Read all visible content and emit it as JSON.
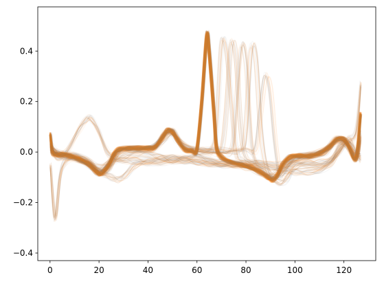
{
  "chart_data": {
    "type": "line",
    "title": "",
    "xlabel": "",
    "ylabel": "",
    "xlim": [
      -5,
      133
    ],
    "ylim": [
      -0.43,
      0.575
    ],
    "x_ticks": [
      0,
      20,
      40,
      60,
      80,
      100,
      120
    ],
    "y_ticks": [
      -0.4,
      -0.2,
      0.0,
      0.2,
      0.4
    ],
    "x_tick_labels": [
      "0",
      "20",
      "40",
      "60",
      "80",
      "100",
      "120"
    ],
    "y_tick_labels": [
      "−0.4",
      "−0.2",
      "0.0",
      "0.2",
      "0.4"
    ],
    "grid": false,
    "legend": "none",
    "colors": {
      "orange": "#ff7f0e",
      "gray": "#808080",
      "blend": "#c2792f"
    },
    "series": [
      {
        "style": "orange-dense-band",
        "points": [
          [
            0,
            0.07
          ],
          [
            1,
            0.0
          ],
          [
            3,
            -0.01
          ],
          [
            5,
            -0.01
          ],
          [
            8,
            -0.015
          ],
          [
            12,
            -0.03
          ],
          [
            16,
            -0.05
          ],
          [
            19,
            -0.08
          ],
          [
            21,
            -0.085
          ],
          [
            24,
            -0.05
          ],
          [
            26,
            -0.01
          ],
          [
            28,
            0.01
          ],
          [
            32,
            0.015
          ],
          [
            36,
            0.015
          ],
          [
            40,
            0.015
          ],
          [
            43,
            0.02
          ],
          [
            46,
            0.06
          ],
          [
            48,
            0.085
          ],
          [
            50,
            0.08
          ],
          [
            52,
            0.05
          ],
          [
            55,
            0.01
          ],
          [
            58,
            0.005
          ],
          [
            60,
            0.01
          ],
          [
            62,
            0.2
          ],
          [
            64,
            0.46
          ],
          [
            65,
            0.4
          ],
          [
            67,
            0.15
          ],
          [
            68,
            0.02
          ],
          [
            70,
            -0.02
          ],
          [
            74,
            -0.04
          ],
          [
            78,
            -0.05
          ],
          [
            82,
            -0.06
          ],
          [
            86,
            -0.08
          ],
          [
            89,
            -0.1
          ],
          [
            91,
            -0.11
          ],
          [
            93,
            -0.09
          ],
          [
            95,
            -0.05
          ],
          [
            98,
            -0.02
          ],
          [
            102,
            -0.015
          ],
          [
            106,
            -0.015
          ],
          [
            110,
            -0.005
          ],
          [
            114,
            0.02
          ],
          [
            117,
            0.05
          ],
          [
            120,
            0.05
          ],
          [
            122,
            0.02
          ],
          [
            125,
            -0.025
          ],
          [
            127,
            0.15
          ]
        ]
      },
      {
        "style": "gray-bump",
        "points": [
          [
            0,
            0.02
          ],
          [
            2,
            0.0
          ],
          [
            5,
            -0.01
          ],
          [
            8,
            0.02
          ],
          [
            12,
            0.09
          ],
          [
            15,
            0.13
          ],
          [
            17,
            0.13
          ],
          [
            20,
            0.08
          ],
          [
            23,
            0.01
          ],
          [
            26,
            -0.02
          ],
          [
            30,
            -0.03
          ],
          [
            35,
            -0.035
          ],
          [
            40,
            -0.035
          ],
          [
            45,
            -0.03
          ],
          [
            50,
            -0.025
          ],
          [
            55,
            -0.025
          ],
          [
            60,
            -0.02
          ],
          [
            65,
            -0.03
          ],
          [
            70,
            -0.04
          ],
          [
            75,
            -0.045
          ],
          [
            80,
            -0.045
          ],
          [
            85,
            -0.045
          ],
          [
            90,
            -0.05
          ],
          [
            95,
            -0.05
          ],
          [
            100,
            -0.045
          ],
          [
            105,
            -0.04
          ],
          [
            110,
            -0.04
          ],
          [
            115,
            -0.03
          ],
          [
            118,
            0.02
          ],
          [
            121,
            0.04
          ],
          [
            124,
            0.0
          ],
          [
            127,
            -0.02
          ]
        ]
      },
      {
        "style": "gray-dip",
        "points": [
          [
            0,
            0.01
          ],
          [
            3,
            -0.02
          ],
          [
            7,
            -0.02
          ],
          [
            12,
            -0.03
          ],
          [
            17,
            -0.06
          ],
          [
            21,
            -0.08
          ],
          [
            25,
            -0.1
          ],
          [
            28,
            -0.11
          ],
          [
            31,
            -0.09
          ],
          [
            35,
            -0.05
          ],
          [
            40,
            -0.04
          ],
          [
            45,
            -0.04
          ],
          [
            50,
            -0.035
          ],
          [
            55,
            -0.03
          ],
          [
            60,
            -0.03
          ],
          [
            65,
            -0.04
          ],
          [
            70,
            -0.045
          ],
          [
            75,
            -0.05
          ],
          [
            80,
            -0.06
          ],
          [
            85,
            -0.08
          ],
          [
            90,
            -0.1
          ],
          [
            94,
            -0.12
          ],
          [
            97,
            -0.1
          ],
          [
            100,
            -0.06
          ],
          [
            105,
            -0.05
          ],
          [
            110,
            -0.06
          ],
          [
            114,
            -0.04
          ],
          [
            118,
            0.0
          ],
          [
            122,
            0.05
          ],
          [
            125,
            0.0
          ],
          [
            127,
            -0.03
          ]
        ]
      },
      {
        "style": "gray-cross",
        "points": [
          [
            0,
            -0.05
          ],
          [
            2,
            -0.26
          ],
          [
            4,
            -0.1
          ],
          [
            6,
            -0.04
          ],
          [
            10,
            -0.02
          ],
          [
            15,
            -0.03
          ],
          [
            20,
            -0.06
          ],
          [
            25,
            -0.04
          ],
          [
            30,
            -0.02
          ],
          [
            35,
            -0.01
          ],
          [
            40,
            -0.01
          ],
          [
            45,
            -0.02
          ],
          [
            50,
            -0.03
          ],
          [
            55,
            -0.035
          ],
          [
            60,
            -0.04
          ],
          [
            65,
            -0.045
          ],
          [
            70,
            -0.05
          ],
          [
            75,
            -0.05
          ],
          [
            80,
            -0.05
          ],
          [
            85,
            -0.055
          ],
          [
            90,
            -0.06
          ],
          [
            95,
            -0.07
          ],
          [
            100,
            -0.08
          ],
          [
            105,
            -0.08
          ],
          [
            110,
            -0.07
          ],
          [
            115,
            -0.04
          ],
          [
            119,
            0.02
          ],
          [
            122,
            0.05
          ],
          [
            125,
            0.08
          ],
          [
            127,
            0.27
          ]
        ]
      },
      {
        "style": "late-peak",
        "points": [
          [
            0,
            0.02
          ],
          [
            3,
            -0.01
          ],
          [
            8,
            -0.015
          ],
          [
            14,
            -0.03
          ],
          [
            19,
            -0.07
          ],
          [
            22,
            -0.08
          ],
          [
            26,
            -0.03
          ],
          [
            30,
            0.005
          ],
          [
            36,
            0.012
          ],
          [
            42,
            0.015
          ],
          [
            46,
            0.05
          ],
          [
            49,
            0.08
          ],
          [
            52,
            0.05
          ],
          [
            56,
            0.01
          ],
          [
            60,
            0.005
          ],
          [
            63,
            0.005
          ],
          [
            66,
            0.01
          ],
          [
            68,
            0.1
          ],
          [
            70,
            0.42
          ],
          [
            72,
            0.4
          ],
          [
            74,
            0.2
          ],
          [
            76,
            0.0
          ],
          [
            78,
            -0.03
          ],
          [
            82,
            -0.05
          ],
          [
            86,
            -0.07
          ],
          [
            90,
            -0.1
          ],
          [
            93,
            -0.08
          ],
          [
            97,
            -0.04
          ],
          [
            102,
            -0.02
          ],
          [
            108,
            -0.01
          ],
          [
            114,
            0.02
          ],
          [
            118,
            0.05
          ],
          [
            122,
            0.03
          ],
          [
            125,
            -0.02
          ],
          [
            127,
            0.08
          ]
        ]
      },
      {
        "style": "late-peak",
        "points": [
          [
            0,
            0.01
          ],
          [
            4,
            -0.01
          ],
          [
            10,
            -0.02
          ],
          [
            16,
            -0.04
          ],
          [
            20,
            -0.075
          ],
          [
            24,
            -0.06
          ],
          [
            28,
            0.0
          ],
          [
            34,
            0.012
          ],
          [
            42,
            0.014
          ],
          [
            47,
            0.07
          ],
          [
            50,
            0.08
          ],
          [
            54,
            0.03
          ],
          [
            60,
            0.005
          ],
          [
            66,
            0.005
          ],
          [
            70,
            0.01
          ],
          [
            72,
            0.15
          ],
          [
            74,
            0.42
          ],
          [
            76,
            0.38
          ],
          [
            78,
            0.1
          ],
          [
            80,
            -0.02
          ],
          [
            84,
            -0.05
          ],
          [
            88,
            -0.08
          ],
          [
            91,
            -0.1
          ],
          [
            95,
            -0.06
          ],
          [
            100,
            -0.02
          ],
          [
            106,
            -0.015
          ],
          [
            112,
            0.0
          ],
          [
            117,
            0.04
          ],
          [
            121,
            0.04
          ],
          [
            125,
            -0.02
          ],
          [
            127,
            0.05
          ]
        ]
      },
      {
        "style": "late-peak",
        "points": [
          [
            0,
            0.03
          ],
          [
            4,
            -0.005
          ],
          [
            10,
            -0.015
          ],
          [
            16,
            -0.04
          ],
          [
            20,
            -0.08
          ],
          [
            24,
            -0.06
          ],
          [
            28,
            0.005
          ],
          [
            34,
            0.01
          ],
          [
            42,
            0.015
          ],
          [
            47,
            0.06
          ],
          [
            50,
            0.08
          ],
          [
            54,
            0.03
          ],
          [
            60,
            0.008
          ],
          [
            68,
            0.008
          ],
          [
            74,
            0.01
          ],
          [
            76,
            0.2
          ],
          [
            78,
            0.42
          ],
          [
            80,
            0.35
          ],
          [
            82,
            0.05
          ],
          [
            84,
            -0.04
          ],
          [
            88,
            -0.07
          ],
          [
            91,
            -0.1
          ],
          [
            95,
            -0.07
          ],
          [
            100,
            -0.025
          ],
          [
            106,
            -0.015
          ],
          [
            112,
            0.0
          ],
          [
            117,
            0.045
          ],
          [
            121,
            0.04
          ],
          [
            125,
            -0.02
          ],
          [
            127,
            0.06
          ]
        ]
      },
      {
        "style": "late-peak",
        "points": [
          [
            0,
            0.02
          ],
          [
            4,
            -0.01
          ],
          [
            10,
            -0.02
          ],
          [
            16,
            -0.045
          ],
          [
            20,
            -0.08
          ],
          [
            24,
            -0.06
          ],
          [
            28,
            0.0
          ],
          [
            34,
            0.01
          ],
          [
            42,
            0.015
          ],
          [
            47,
            0.06
          ],
          [
            50,
            0.075
          ],
          [
            54,
            0.03
          ],
          [
            60,
            0.006
          ],
          [
            70,
            0.006
          ],
          [
            78,
            0.008
          ],
          [
            80,
            0.1
          ],
          [
            82,
            0.4
          ],
          [
            84,
            0.38
          ],
          [
            86,
            0.1
          ],
          [
            88,
            -0.05
          ],
          [
            91,
            -0.1
          ],
          [
            95,
            -0.08
          ],
          [
            100,
            -0.03
          ],
          [
            106,
            -0.015
          ],
          [
            112,
            0.0
          ],
          [
            117,
            0.05
          ],
          [
            121,
            0.035
          ],
          [
            125,
            -0.02
          ],
          [
            127,
            0.05
          ]
        ]
      },
      {
        "style": "late-peak",
        "points": [
          [
            0,
            0.02
          ],
          [
            4,
            -0.01
          ],
          [
            10,
            -0.02
          ],
          [
            16,
            -0.045
          ],
          [
            20,
            -0.08
          ],
          [
            24,
            -0.05
          ],
          [
            28,
            0.005
          ],
          [
            34,
            0.012
          ],
          [
            42,
            0.015
          ],
          [
            47,
            0.07
          ],
          [
            50,
            0.08
          ],
          [
            54,
            0.03
          ],
          [
            60,
            0.006
          ],
          [
            70,
            0.006
          ],
          [
            80,
            0.006
          ],
          [
            84,
            0.01
          ],
          [
            86,
            0.15
          ],
          [
            88,
            0.3
          ],
          [
            90,
            0.25
          ],
          [
            92,
            0.05
          ],
          [
            94,
            -0.08
          ],
          [
            96,
            -0.08
          ],
          [
            100,
            -0.03
          ],
          [
            106,
            -0.015
          ],
          [
            112,
            0.0
          ],
          [
            117,
            0.05
          ],
          [
            121,
            0.035
          ],
          [
            125,
            -0.02
          ],
          [
            127,
            0.05
          ]
        ]
      }
    ]
  }
}
